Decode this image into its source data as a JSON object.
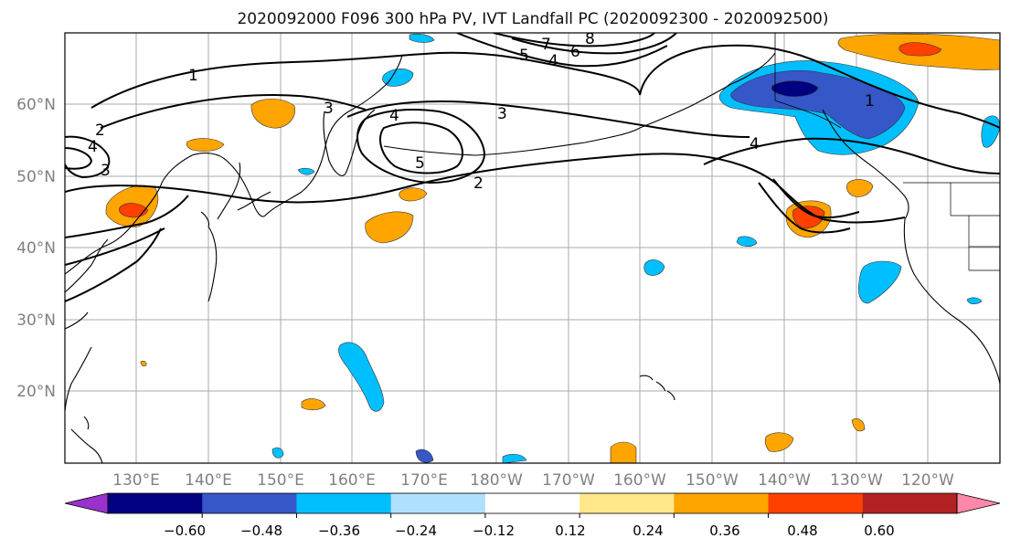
{
  "map": {
    "title": "2020092000 F096 300 hPa PV, IVT Landfall PC (2020092300 - 2020092500)",
    "lat_labels": [
      "60°N",
      "50°N",
      "40°N",
      "30°N",
      "20°N"
    ],
    "lon_labels": [
      "130°E",
      "140°E",
      "150°E",
      "160°E",
      "170°E",
      "180°W",
      "170°W",
      "160°W",
      "150°W",
      "140°W",
      "130°W",
      "120°W"
    ],
    "contour_labels": [
      "1",
      "1",
      "2",
      "2",
      "3",
      "3",
      "3",
      "4",
      "4",
      "4",
      "4",
      "5",
      "5",
      "6",
      "7",
      "8"
    ],
    "colors": {
      "neg_strong": "#3557c8",
      "neg_mid": "#00bfff",
      "neg_weak": "#b0e0ff",
      "pos_weak": "#ffe88a",
      "pos_mid": "#ffa500",
      "pos_strong": "#ff4000",
      "land_line": "#000000"
    }
  },
  "colorbar": {
    "colors": [
      "#9932cc",
      "#000080",
      "#3557c8",
      "#00bfff",
      "#b0e0ff",
      "#ffffff",
      "#ffe88a",
      "#ffa500",
      "#ff4000",
      "#b22222",
      "#ff88aa"
    ],
    "tick_labels": [
      "−0.60",
      "−0.48",
      "−0.36",
      "−0.24",
      "−0.12",
      "0.12",
      "0.24",
      "0.36",
      "0.48",
      "0.60"
    ]
  }
}
